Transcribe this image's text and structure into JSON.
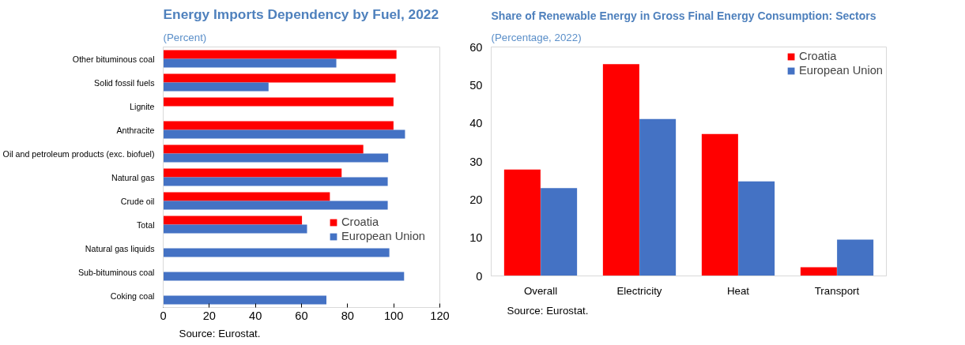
{
  "chart_data": [
    {
      "type": "bar",
      "orientation": "horizontal",
      "title": "Energy Imports Dependency by Fuel, 2022",
      "subtitle": "(Percent)",
      "categories": [
        "Other bituminous coal",
        "Solid fossil fuels",
        "Lignite",
        "Anthracite",
        "Oil and petroleum products (exc. biofuel)",
        "Natural gas",
        "Crude oil",
        "Total",
        "Natural gas liquids",
        "Sub-bituminous coal",
        "Coking coal"
      ],
      "series": [
        {
          "name": "Croatia",
          "color": "#ff0000",
          "values": [
            101.2,
            100.8,
            99.9,
            99.9,
            86.8,
            77.4,
            72.3,
            60.2,
            null,
            null,
            null
          ]
        },
        {
          "name": "European Union",
          "color": "#4472c4",
          "values": [
            75.1,
            45.7,
            null,
            104.9,
            97.6,
            97.4,
            97.4,
            62.4,
            98.1,
            104.5,
            70.8
          ]
        }
      ],
      "xlim": [
        0,
        120
      ],
      "xticks": [
        0,
        20,
        40,
        60,
        80,
        100,
        120
      ],
      "grid": false,
      "legend": "right",
      "annotations": [
        "Source: Eurostat."
      ]
    },
    {
      "type": "bar",
      "title": "Share of Renewable Energy in Gross Final Energy Consumption: Sectors",
      "subtitle": "(Percentage, 2022)",
      "categories": [
        "Overall",
        "Electricity",
        "Heat",
        "Transport"
      ],
      "series": [
        {
          "name": "Croatia",
          "color": "#ff0000",
          "values": [
            27.9,
            55.5,
            37.2,
            2.3
          ]
        },
        {
          "name": "European Union",
          "color": "#4472c4",
          "values": [
            23.0,
            41.1,
            24.8,
            9.5
          ]
        }
      ],
      "ylim": [
        0,
        60
      ],
      "yticks": [
        0,
        10,
        20,
        30,
        40,
        50,
        60
      ],
      "grid": false,
      "legend": "top right",
      "annotations": [
        "Source: Eurostat."
      ]
    }
  ]
}
